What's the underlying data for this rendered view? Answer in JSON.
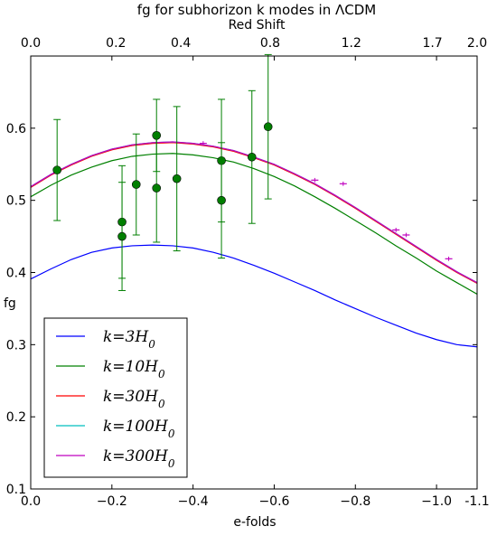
{
  "chart_data": {
    "type": "line",
    "title": "fg for subhorizon k modes in ΛCDM",
    "xlabel": "e-folds",
    "ylabel": "fg",
    "top_xlabel": "Red Shift",
    "xlim": [
      0.0,
      -1.1
    ],
    "ylim": [
      0.1,
      0.7
    ],
    "xticks": [
      {
        "value": 0.0,
        "label": "0.0"
      },
      {
        "value": -0.2,
        "label": "−0.2"
      },
      {
        "value": -0.4,
        "label": "−0.4"
      },
      {
        "value": -0.6,
        "label": "−0.6"
      },
      {
        "value": -0.8,
        "label": "−0.8"
      },
      {
        "value": -1.0,
        "label": "−1.0"
      },
      {
        "value": -1.1,
        "label": "-1.1"
      }
    ],
    "yticks": [
      {
        "value": 0.1,
        "label": "0.1"
      },
      {
        "value": 0.2,
        "label": "0.2"
      },
      {
        "value": 0.3,
        "label": "0.3"
      },
      {
        "value": 0.4,
        "label": "0.4"
      },
      {
        "value": 0.5,
        "label": "0.5"
      },
      {
        "value": 0.6,
        "label": "0.6"
      }
    ],
    "top_ticks": [
      {
        "value": 0.0,
        "label": "0.0"
      },
      {
        "value": -0.21,
        "label": "0.2"
      },
      {
        "value": -0.37,
        "label": "0.4"
      },
      {
        "value": -0.59,
        "label": "0.8"
      },
      {
        "value": -0.79,
        "label": "1.2"
      },
      {
        "value": -0.99,
        "label": "1.7"
      },
      {
        "value": -1.1,
        "label": "2.0"
      }
    ],
    "x": [
      0.0,
      -0.05,
      -0.1,
      -0.15,
      -0.2,
      -0.25,
      -0.3,
      -0.35,
      -0.4,
      -0.45,
      -0.5,
      -0.55,
      -0.6,
      -0.65,
      -0.7,
      -0.75,
      -0.8,
      -0.85,
      -0.9,
      -0.95,
      -1.0,
      -1.05,
      -1.1
    ],
    "series": [
      {
        "name": "k=3H0",
        "legend_base": "k=3H",
        "color": "#0000ff",
        "values": [
          0.391,
          0.405,
          0.418,
          0.428,
          0.434,
          0.437,
          0.438,
          0.437,
          0.434,
          0.428,
          0.42,
          0.41,
          0.399,
          0.387,
          0.375,
          0.362,
          0.35,
          0.338,
          0.327,
          0.316,
          0.307,
          0.3,
          0.297
        ]
      },
      {
        "name": "k=10H0",
        "legend_base": "k=10H",
        "color": "#008000",
        "values": [
          0.505,
          0.521,
          0.535,
          0.546,
          0.555,
          0.561,
          0.564,
          0.565,
          0.563,
          0.559,
          0.553,
          0.544,
          0.533,
          0.52,
          0.505,
          0.489,
          0.472,
          0.455,
          0.437,
          0.42,
          0.402,
          0.386,
          0.37
        ]
      },
      {
        "name": "k=30H0",
        "legend_base": "k=30H",
        "color": "#ff0000",
        "values": [
          0.518,
          0.535,
          0.549,
          0.561,
          0.57,
          0.576,
          0.579,
          0.58,
          0.578,
          0.574,
          0.568,
          0.559,
          0.549,
          0.536,
          0.522,
          0.506,
          0.489,
          0.471,
          0.453,
          0.435,
          0.417,
          0.4,
          0.385
        ]
      },
      {
        "name": "k=100H0",
        "legend_base": "k=100H",
        "color": "#00bfbf",
        "values": [
          0.519,
          0.536,
          0.55,
          0.562,
          0.571,
          0.577,
          0.58,
          0.581,
          0.579,
          0.575,
          0.569,
          0.56,
          0.55,
          0.537,
          0.523,
          0.507,
          0.49,
          0.472,
          0.454,
          0.436,
          0.418,
          0.401,
          0.386
        ]
      },
      {
        "name": "k=300H0",
        "legend_base": "k=300H",
        "color": "#bf00bf",
        "values": [
          0.519,
          0.536,
          0.55,
          0.562,
          0.571,
          0.577,
          0.58,
          0.581,
          0.579,
          0.575,
          0.569,
          0.56,
          0.55,
          0.537,
          0.523,
          0.507,
          0.49,
          0.472,
          0.454,
          0.436,
          0.418,
          0.401,
          0.386
        ]
      }
    ],
    "observations": {
      "color": "#007f00",
      "points": [
        {
          "x": -0.065,
          "y": 0.542,
          "err": 0.07
        },
        {
          "x": -0.225,
          "y": 0.47,
          "err": 0.078
        },
        {
          "x": -0.225,
          "y": 0.45,
          "err": 0.075
        },
        {
          "x": -0.26,
          "y": 0.522,
          "err": 0.07
        },
        {
          "x": -0.31,
          "y": 0.59,
          "err": 0.05
        },
        {
          "x": -0.31,
          "y": 0.517,
          "err": 0.075
        },
        {
          "x": -0.36,
          "y": 0.53,
          "err": 0.1
        },
        {
          "x": -0.47,
          "y": 0.555,
          "err": 0.085
        },
        {
          "x": -0.47,
          "y": 0.5,
          "err": 0.08
        },
        {
          "x": -0.545,
          "y": 0.56,
          "err": 0.092
        },
        {
          "x": -0.585,
          "y": 0.602,
          "err": 0.1
        }
      ]
    },
    "model_error_bars": {
      "color": "#bf00bf",
      "points": [
        {
          "x": -0.425,
          "y": 0.579,
          "err": 0.003
        },
        {
          "x": -0.7,
          "y": 0.528,
          "err": 0.003
        },
        {
          "x": -0.77,
          "y": 0.523,
          "err": 0.003
        },
        {
          "x": -0.9,
          "y": 0.459,
          "err": 0.003
        },
        {
          "x": -0.925,
          "y": 0.452,
          "err": 0.003
        },
        {
          "x": -1.03,
          "y": 0.419,
          "err": 0.003
        }
      ]
    },
    "legend_subscript": "0",
    "legend_position": "lower-left",
    "grid": false
  }
}
